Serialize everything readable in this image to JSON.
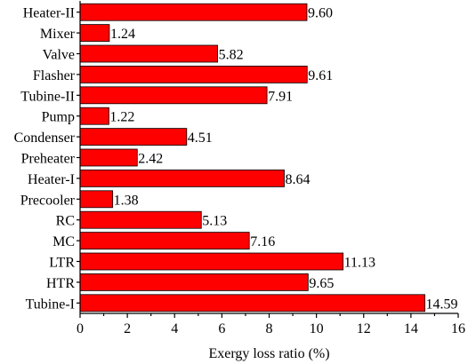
{
  "chart_data": {
    "type": "bar",
    "orientation": "horizontal",
    "categories": [
      "Heater-II",
      "Mixer",
      "Valve",
      "Flasher",
      "Tubine-II",
      "Pump",
      "Condenser",
      "Preheater",
      "Heater-I",
      "Precooler",
      "RC",
      "MC",
      "LTR",
      "HTR",
      "Tubine-I"
    ],
    "values": [
      9.6,
      1.24,
      5.82,
      9.61,
      7.91,
      1.22,
      4.51,
      2.42,
      8.64,
      1.38,
      5.13,
      7.16,
      11.13,
      9.65,
      14.59
    ],
    "value_labels": [
      "9.60",
      "1.24",
      "5.82",
      "9.61",
      "7.91",
      "1.22",
      "4.51",
      "2.42",
      "8.64",
      "1.38",
      "5.13",
      "7.16",
      "11.13",
      "9.65",
      "14.59"
    ],
    "xlabel": "Exergy loss ratio (%)",
    "ylabel": "",
    "xlim": [
      0,
      16
    ],
    "x_ticks": [
      "0",
      "2",
      "4",
      "6",
      "8",
      "10",
      "12",
      "14",
      "16"
    ],
    "grid": false,
    "bar_color": "#ff0000"
  }
}
